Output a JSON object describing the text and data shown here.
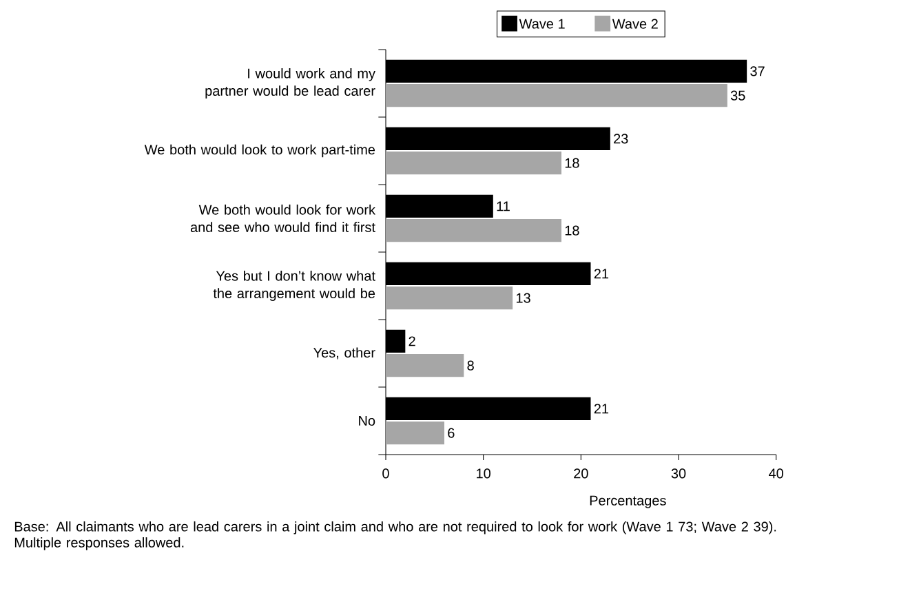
{
  "chart_data": {
    "type": "bar",
    "orientation": "horizontal",
    "xlabel": "Percentages",
    "categories": [
      "I would work and my partner would be lead carer",
      "We both would look to work part-time",
      "We both would look for work and see who would find it first",
      "Yes but I don’t know what the arrangement would be",
      "Yes, other",
      "No"
    ],
    "series": [
      {
        "name": "Wave 1",
        "color": "#000000",
        "values": [
          37,
          23,
          11,
          21,
          2,
          21
        ]
      },
      {
        "name": "Wave 2",
        "color": "#a6a6a6",
        "values": [
          35,
          18,
          18,
          13,
          8,
          6
        ]
      }
    ],
    "xlim": [
      0,
      40
    ],
    "xticks": [
      0,
      10,
      20,
      30,
      40
    ],
    "data_labels": true,
    "legend": "top",
    "annotations": [
      "Base: All claimants who are lead carers in a joint claim and who are not required to look for work (Wave 1 73; Wave 2 39).",
      "Multiple responses allowed."
    ]
  }
}
